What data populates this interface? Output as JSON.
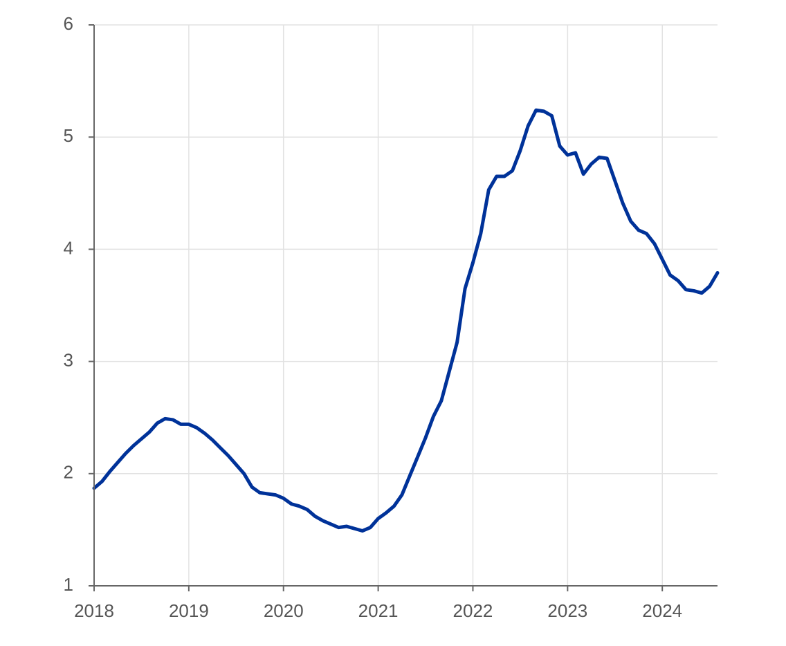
{
  "chart_data": {
    "type": "line",
    "x": [
      2018,
      2018.083,
      2018.167,
      2018.25,
      2018.333,
      2018.417,
      2018.5,
      2018.583,
      2018.667,
      2018.75,
      2018.833,
      2018.917,
      2019,
      2019.083,
      2019.167,
      2019.25,
      2019.333,
      2019.417,
      2019.5,
      2019.583,
      2019.667,
      2019.75,
      2019.833,
      2019.917,
      2020,
      2020.083,
      2020.167,
      2020.25,
      2020.333,
      2020.417,
      2020.5,
      2020.583,
      2020.667,
      2020.75,
      2020.833,
      2020.917,
      2021,
      2021.083,
      2021.167,
      2021.25,
      2021.333,
      2021.417,
      2021.5,
      2021.583,
      2021.667,
      2021.75,
      2021.833,
      2021.917,
      2022,
      2022.083,
      2022.167,
      2022.25,
      2022.333,
      2022.417,
      2022.5,
      2022.583,
      2022.667,
      2022.75,
      2022.833,
      2022.917,
      2023,
      2023.083,
      2023.167,
      2023.25,
      2023.333,
      2023.417,
      2023.5,
      2023.583,
      2023.667,
      2023.75,
      2023.833,
      2023.917,
      2024,
      2024.083,
      2024.167,
      2024.25,
      2024.333,
      2024.417,
      2024.5,
      2024.583
    ],
    "series": [
      {
        "color": "#003299",
        "values": [
          1.87,
          1.93,
          2.02,
          2.1,
          2.18,
          2.25,
          2.31,
          2.37,
          2.45,
          2.49,
          2.48,
          2.44,
          2.44,
          2.41,
          2.36,
          2.3,
          2.23,
          2.16,
          2.08,
          2.0,
          1.88,
          1.83,
          1.82,
          1.81,
          1.78,
          1.73,
          1.71,
          1.68,
          1.62,
          1.58,
          1.55,
          1.52,
          1.53,
          1.51,
          1.49,
          1.52,
          1.6,
          1.65,
          1.71,
          1.81,
          1.98,
          2.15,
          2.32,
          2.51,
          2.65,
          2.91,
          3.17,
          3.65,
          3.88,
          4.14,
          4.53,
          4.65,
          4.65,
          4.7,
          4.88,
          5.1,
          5.24,
          5.23,
          5.19,
          4.92,
          4.84,
          4.86,
          4.67,
          4.76,
          4.82,
          4.81,
          4.61,
          4.41,
          4.25,
          4.17,
          4.14,
          4.05,
          3.91,
          3.77,
          3.72,
          3.64,
          3.63,
          3.61,
          3.67,
          3.79
        ]
      }
    ],
    "xlim": [
      2018,
      2024.583
    ],
    "xticks": [
      2018,
      2019,
      2020,
      2021,
      2022,
      2023,
      2024
    ],
    "ylim": [
      1,
      6
    ],
    "yticks": [
      1,
      2,
      3,
      4,
      5,
      6
    ],
    "grid": true
  }
}
